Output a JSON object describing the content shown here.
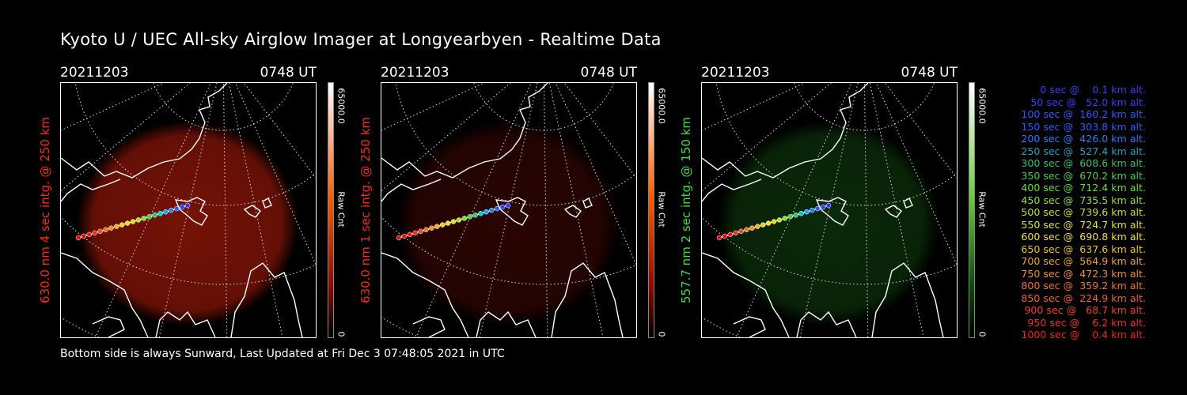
{
  "title": "Kyoto U / UEC All-sky Airglow Imager at Longyearbyen - Realtime Data",
  "footer": "Bottom side is always Sunward, Last Updated at Fri Dec  3 07:48:05 2021 in UTC",
  "panels": [
    {
      "date": "20211203",
      "time": "0748 UT",
      "ylabel": "630.0 nm 4 sec intg. @ 250 km",
      "label_color": "#ff2a10",
      "glow": "#8a1508",
      "glow_opacity": 0.85,
      "cbar_top": "#ffffff",
      "cbar_mid": "#ff5a00",
      "cbar_low": "#8a0a00",
      "cbar_max": "65000.0",
      "cbar_unit": "Raw Cnt",
      "cbar_min": "0"
    },
    {
      "date": "20211203",
      "time": "0748 UT",
      "ylabel": "630.0 nm 1 sec intg. @ 250 km",
      "label_color": "#ff2a10",
      "glow": "#3a0603",
      "glow_opacity": 0.7,
      "cbar_top": "#ffffff",
      "cbar_mid": "#ff5a00",
      "cbar_low": "#8a0a00",
      "cbar_max": "65000.0",
      "cbar_unit": "Raw Cnt",
      "cbar_min": "0"
    },
    {
      "date": "20211203",
      "time": "0748 UT",
      "ylabel": "557.7 nm 2 sec intg. @ 150 km",
      "label_color": "#3ee03e",
      "glow": "#0e3a0e",
      "glow_opacity": 0.7,
      "cbar_top": "#ffffff",
      "cbar_mid": "#6acc3a",
      "cbar_low": "#0a4a0a",
      "cbar_max": "65000.0",
      "cbar_unit": "Raw Cnt",
      "cbar_min": "0"
    }
  ],
  "trajectory_colors": [
    "#3030ff",
    "#2a40ff",
    "#2060ff",
    "#1a80ff",
    "#10a8ff",
    "#10c8c8",
    "#20d070",
    "#40d840",
    "#80e030",
    "#b0e020",
    "#d8e020",
    "#f0e020",
    "#f8d020",
    "#f8b020",
    "#f89020",
    "#f87020",
    "#f05020",
    "#e83020",
    "#e02020",
    "#e01010",
    "#d81010"
  ],
  "altitudes": [
    {
      "text": "   0 sec @    0.1 km alt.",
      "color": "#3a3aff"
    },
    {
      "text": "  50 sec @   52.0 km alt.",
      "color": "#3a3aff"
    },
    {
      "text": " 100 sec @  160.2 km alt.",
      "color": "#2a5aff"
    },
    {
      "text": " 150 sec @  303.8 km alt.",
      "color": "#2a5aff"
    },
    {
      "text": " 200 sec @  426.0 km alt.",
      "color": "#2a7aff"
    },
    {
      "text": " 250 sec @  527.4 km alt.",
      "color": "#20a0c0"
    },
    {
      "text": " 300 sec @  608.6 km alt.",
      "color": "#30c070"
    },
    {
      "text": " 350 sec @  670.2 km alt.",
      "color": "#40d040"
    },
    {
      "text": " 400 sec @  712.4 km alt.",
      "color": "#60e030"
    },
    {
      "text": " 450 sec @  735.5 km alt.",
      "color": "#90e030"
    },
    {
      "text": " 500 sec @  739.6 km alt.",
      "color": "#c0e030"
    },
    {
      "text": " 550 sec @  724.7 km alt.",
      "color": "#e0e030"
    },
    {
      "text": " 600 sec @  690.8 km alt.",
      "color": "#f0e030"
    },
    {
      "text": " 650 sec @  637.6 km alt.",
      "color": "#f0c030"
    },
    {
      "text": " 700 sec @  564.9 km alt.",
      "color": "#f0a030"
    },
    {
      "text": " 750 sec @  472.3 km alt.",
      "color": "#f09030"
    },
    {
      "text": " 800 sec @  359.2 km alt.",
      "color": "#f07030"
    },
    {
      "text": " 850 sec @  224.9 km alt.",
      "color": "#f06030"
    },
    {
      "text": " 900 sec @   68.7 km alt.",
      "color": "#f04020"
    },
    {
      "text": " 950 sec @    6.2 km alt.",
      "color": "#f03020"
    },
    {
      "text": "1000 sec @    0.4 km alt.",
      "color": "#f02020"
    }
  ]
}
